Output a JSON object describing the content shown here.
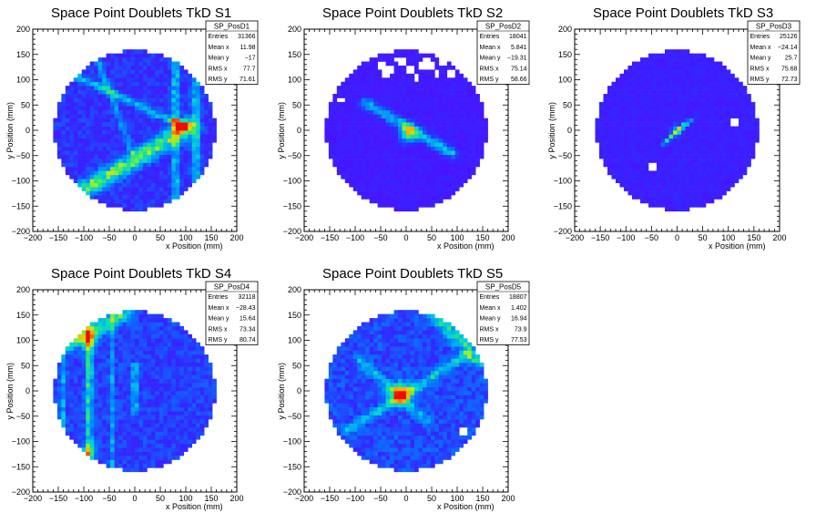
{
  "chart_data": [
    {
      "type": "heatmap",
      "title": "Space Point Doublets TkD S1",
      "xlabel": "x Position (mm)",
      "ylabel": "y Position (mm)",
      "xlim": [
        -200,
        200
      ],
      "ylim": [
        -200,
        200
      ],
      "xticks": [
        -200,
        -150,
        -100,
        -50,
        0,
        50,
        100,
        150,
        200
      ],
      "yticks": [
        -200,
        -150,
        -100,
        -50,
        0,
        50,
        100,
        150,
        200
      ],
      "stats": {
        "name": "SP_PosD1",
        "rows": [
          {
            "label": "Entries",
            "value": "31366"
          },
          {
            "label": "Mean x",
            "value": "11.98"
          },
          {
            "label": "Mean y",
            "value": "−17"
          },
          {
            "label": "RMS x",
            "value": "77.7"
          },
          {
            "label": "RMS y",
            "value": "71.61"
          }
        ]
      },
      "features": [
        {
          "kind": "line",
          "x1": -120,
          "y1": -130,
          "x2": 105,
          "y2": 5,
          "w": 24,
          "amp": 0.45
        },
        {
          "kind": "line",
          "x1": -120,
          "y1": 110,
          "x2": 90,
          "y2": 10,
          "w": 10,
          "amp": 0.3
        },
        {
          "kind": "line",
          "x1": -80,
          "y1": 160,
          "x2": 0,
          "y2": -60,
          "w": 10,
          "amp": 0.18
        },
        {
          "kind": "line",
          "x1": 80,
          "y1": 160,
          "x2": 80,
          "y2": -160,
          "w": 10,
          "amp": 0.32
        },
        {
          "kind": "line",
          "x1": 120,
          "y1": 160,
          "x2": 120,
          "y2": -160,
          "w": 12,
          "amp": 0.28
        },
        {
          "kind": "blob",
          "x": 95,
          "y": 10,
          "r": 8,
          "amp": 0.6
        },
        {
          "kind": "blob",
          "x": 82,
          "y": 15,
          "r": 5,
          "amp": 0.45
        }
      ],
      "base": 0.12,
      "noise": 0.14,
      "holes": []
    },
    {
      "type": "heatmap",
      "title": "Space Point Doublets TkD S2",
      "xlabel": "x Position (mm)",
      "ylabel": "y Position (mm)",
      "xlim": [
        -200,
        200
      ],
      "ylim": [
        -200,
        200
      ],
      "xticks": [
        -200,
        -150,
        -100,
        -50,
        0,
        50,
        100,
        150,
        200
      ],
      "yticks": [
        -200,
        -150,
        -100,
        -50,
        0,
        50,
        100,
        150,
        200
      ],
      "stats": {
        "name": "SP_PosD2",
        "rows": [
          {
            "label": "Entries",
            "value": "18041"
          },
          {
            "label": "Mean x",
            "value": "5.841"
          },
          {
            "label": "Mean y",
            "value": "−19.31"
          },
          {
            "label": "RMS x",
            "value": "75.14"
          },
          {
            "label": "RMS y",
            "value": "58.66"
          }
        ]
      },
      "features": [
        {
          "kind": "line",
          "x1": -80,
          "y1": 55,
          "x2": 90,
          "y2": -45,
          "w": 14,
          "amp": 0.35
        },
        {
          "kind": "blob",
          "x": 5,
          "y": -5,
          "r": 12,
          "amp": 0.55
        }
      ],
      "base": 0.08,
      "noise": 0.08,
      "holes": [
        [
          -50,
          130
        ],
        [
          -30,
          120
        ],
        [
          -10,
          135
        ],
        [
          10,
          120
        ],
        [
          30,
          130
        ],
        [
          50,
          125
        ],
        [
          70,
          135
        ],
        [
          -40,
          110
        ],
        [
          20,
          105
        ],
        [
          60,
          110
        ],
        [
          -20,
          140
        ],
        [
          40,
          140
        ],
        [
          90,
          115
        ],
        [
          -130,
          60
        ]
      ]
    },
    {
      "type": "heatmap",
      "title": "Space Point Doublets TkD S3",
      "xlabel": "x Position (mm)",
      "ylabel": "y Position (mm)",
      "xlim": [
        -200,
        200
      ],
      "ylim": [
        -200,
        200
      ],
      "xticks": [
        -200,
        -150,
        -100,
        -50,
        0,
        50,
        100,
        150,
        200
      ],
      "yticks": [
        -200,
        -150,
        -100,
        -50,
        0,
        50,
        100,
        150,
        200
      ],
      "stats": {
        "name": "SP_PosD3",
        "rows": [
          {
            "label": "Entries",
            "value": "25126"
          },
          {
            "label": "Mean x",
            "value": "−24.14"
          },
          {
            "label": "Mean y",
            "value": "25.7"
          },
          {
            "label": "RMS x",
            "value": "75.68"
          },
          {
            "label": "RMS y",
            "value": "72.73"
          }
        ]
      },
      "features": [
        {
          "kind": "line",
          "x1": -25,
          "y1": -25,
          "x2": 25,
          "y2": 20,
          "w": 6,
          "amp": 0.4
        },
        {
          "kind": "blob",
          "x": 0,
          "y": 0,
          "r": 7,
          "amp": 0.35
        }
      ],
      "base": 0.1,
      "noise": 0.08,
      "holes": [
        [
          -45,
          -75
        ],
        [
          115,
          15
        ]
      ]
    },
    {
      "type": "heatmap",
      "title": "Space Point Doublets TkD S4",
      "xlabel": "x Position (mm)",
      "ylabel": "y Position (mm)",
      "xlim": [
        -200,
        200
      ],
      "ylim": [
        -200,
        200
      ],
      "xticks": [
        -200,
        -150,
        -100,
        -50,
        0,
        50,
        100,
        150,
        200
      ],
      "yticks": [
        -200,
        -150,
        -100,
        -50,
        0,
        50,
        100,
        150,
        200
      ],
      "stats": {
        "name": "SP_PosD4",
        "rows": [
          {
            "label": "Entries",
            "value": "32118"
          },
          {
            "label": "Mean x",
            "value": "−28.43"
          },
          {
            "label": "Mean y",
            "value": "15.64"
          },
          {
            "label": "RMS x",
            "value": "73.34"
          },
          {
            "label": "RMS y",
            "value": "80.74"
          }
        ]
      },
      "features": [
        {
          "kind": "line",
          "x1": -160,
          "y1": 80,
          "x2": -20,
          "y2": 150,
          "w": 20,
          "amp": 0.35
        },
        {
          "kind": "line",
          "x1": -90,
          "y1": 160,
          "x2": -90,
          "y2": -130,
          "w": 10,
          "amp": 0.35
        },
        {
          "kind": "line",
          "x1": -140,
          "y1": 160,
          "x2": -140,
          "y2": -160,
          "w": 8,
          "amp": 0.2
        },
        {
          "kind": "line",
          "x1": -45,
          "y1": 160,
          "x2": -45,
          "y2": -160,
          "w": 7,
          "amp": 0.18
        },
        {
          "kind": "line",
          "x1": 0,
          "y1": 50,
          "x2": 0,
          "y2": -40,
          "w": 8,
          "amp": 0.3
        },
        {
          "kind": "blob",
          "x": -90,
          "y": 100,
          "r": 12,
          "amp": 0.45
        },
        {
          "kind": "blob",
          "x": -90,
          "y": -120,
          "r": 10,
          "amp": 0.3
        }
      ],
      "base": 0.15,
      "noise": 0.14,
      "holes": []
    },
    {
      "type": "heatmap",
      "title": "Space Point Doublets TkD S5",
      "xlabel": "x Position (mm)",
      "ylabel": "y Position (mm)",
      "xlim": [
        -200,
        200
      ],
      "ylim": [
        -200,
        200
      ],
      "xticks": [
        -200,
        -150,
        -100,
        -50,
        0,
        50,
        100,
        150,
        200
      ],
      "yticks": [
        -200,
        -150,
        -100,
        -50,
        0,
        50,
        100,
        150,
        200
      ],
      "stats": {
        "name": "SP_PosD5",
        "rows": [
          {
            "label": "Entries",
            "value": "18807"
          },
          {
            "label": "Mean x",
            "value": "1.402"
          },
          {
            "label": "Mean y",
            "value": "16.94"
          },
          {
            "label": "RMS x",
            "value": "73.9"
          },
          {
            "label": "RMS y",
            "value": "77.53"
          }
        ]
      },
      "features": [
        {
          "kind": "blob",
          "x": -10,
          "y": -5,
          "r": 14,
          "amp": 0.65
        },
        {
          "kind": "line",
          "x1": -120,
          "y1": -80,
          "x2": 120,
          "y2": 70,
          "w": 12,
          "amp": 0.25
        },
        {
          "kind": "line",
          "x1": 60,
          "y1": 150,
          "x2": 140,
          "y2": 60,
          "w": 20,
          "amp": 0.3
        },
        {
          "kind": "line",
          "x1": -90,
          "y1": 60,
          "x2": 40,
          "y2": -60,
          "w": 14,
          "amp": 0.2
        }
      ],
      "base": 0.16,
      "noise": 0.16,
      "holes": [
        [
          110,
          -80
        ]
      ]
    }
  ]
}
